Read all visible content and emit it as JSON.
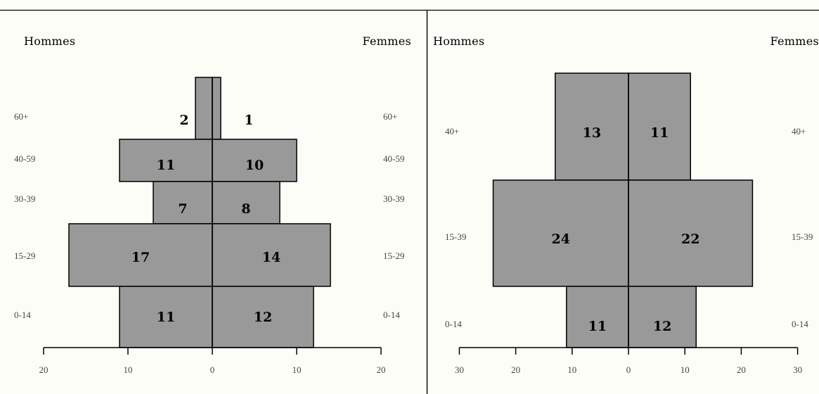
{
  "colors": {
    "bar": "#999999",
    "border": "#000000",
    "background": "#fdfdf8",
    "text": "#444444"
  },
  "chart_data": [
    {
      "type": "bar",
      "orientation": "horizontal-population-pyramid",
      "left_header": "Hommes",
      "right_header": "Femmes",
      "categories": [
        "60+",
        "40-59",
        "30-39",
        "15-29",
        "0-14"
      ],
      "left_labels": [
        "60+",
        "40-59",
        "30-39",
        "15-29",
        "0-14"
      ],
      "right_labels": [
        "60+",
        "40-59",
        "30-39",
        "15-29",
        "0-14"
      ],
      "series": [
        {
          "name": "Hommes",
          "values": [
            2,
            11,
            7,
            17,
            11
          ]
        },
        {
          "name": "Femmes",
          "values": [
            1,
            10,
            8,
            14,
            12
          ]
        }
      ],
      "xlim": [
        -20,
        20
      ],
      "ticks": [
        20,
        10,
        0,
        10,
        20
      ]
    },
    {
      "type": "bar",
      "orientation": "horizontal-population-pyramid",
      "left_header": "Hommes",
      "right_header": "Femmes",
      "categories": [
        "40+",
        "15-39",
        "0-14"
      ],
      "left_labels": [
        "40+",
        "15-39",
        "0-14"
      ],
      "right_labels": [
        "40+",
        "15-39",
        "0-14"
      ],
      "series": [
        {
          "name": "Hommes",
          "values": [
            13,
            24,
            11
          ]
        },
        {
          "name": "Femmes",
          "values": [
            11,
            22,
            12
          ]
        }
      ],
      "xlim": [
        -30,
        30
      ],
      "ticks": [
        30,
        20,
        10,
        0,
        10,
        20,
        30
      ]
    }
  ]
}
